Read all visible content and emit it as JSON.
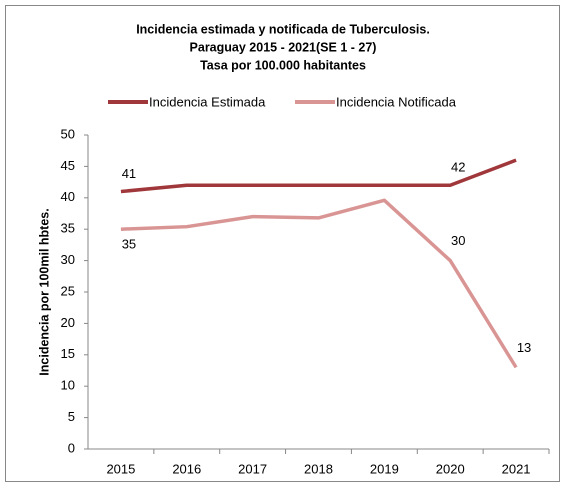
{
  "chart_data": {
    "type": "line",
    "title": [
      "Incidencia estimada y notificada  de Tuberculosis.",
      "Paraguay 2015 - 2021(SE 1 - 27)",
      "Tasa por 100.000 habitantes"
    ],
    "y_label": "Incidencia por 100mil hbtes.",
    "categories": [
      "2015",
      "2016",
      "2017",
      "2018",
      "2019",
      "2020",
      "2021"
    ],
    "series": [
      {
        "name": "Incidencia Estimada",
        "color": "#a0383b",
        "values": [
          41,
          42,
          42,
          42,
          42,
          42,
          46
        ],
        "value_labels": [
          "41",
          null,
          null,
          null,
          null,
          "42",
          null
        ]
      },
      {
        "name": "Incidencia Notificada",
        "color": "#d99594",
        "values": [
          35,
          35.4,
          37,
          36.8,
          39.6,
          30,
          13
        ],
        "value_labels": [
          "35",
          null,
          null,
          null,
          null,
          "30",
          "13"
        ]
      }
    ],
    "ylim": [
      0,
      50
    ],
    "yticks": [
      0,
      5,
      10,
      15,
      20,
      25,
      30,
      35,
      40,
      45,
      50
    ],
    "grid": false,
    "legend": "top"
  }
}
